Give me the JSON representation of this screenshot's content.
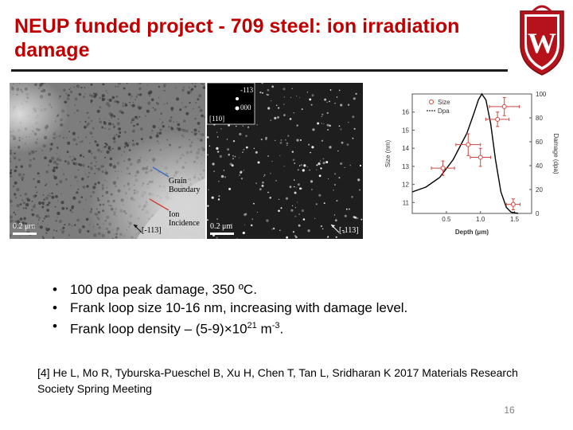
{
  "slide": {
    "title": "NEUP funded project - 709 steel: ion irradiation damage",
    "page_number": "16",
    "colors": {
      "title": "#c00000",
      "crest": "#b5121b",
      "size_series": "#d0453f",
      "dpa_series": "#000000"
    }
  },
  "micrograph_left": {
    "scale_bar": "0.2 μm",
    "zone_axis": "[-113]",
    "label_grain_line1": "Grain",
    "label_grain_line2": "Boundary",
    "label_ion_line1": "Ion",
    "label_ion_line2": "Incidence"
  },
  "micrograph_right": {
    "scale_bar": "0.2 μm",
    "zone_axis": "[-113]",
    "inset_labels": [
      "-113",
      "000",
      "[110]"
    ]
  },
  "chart_data": {
    "type": "scatter",
    "xlabel": "Depth (μm)",
    "ylabel_left": "Size (nm)",
    "ylabel_right": "Damage (dpa)",
    "x_ticks": [
      "0.5",
      "1.0",
      "1.5"
    ],
    "y_left_ticks": [
      "11",
      "12",
      "13",
      "14",
      "15",
      "16"
    ],
    "y_right_ticks": [
      "0",
      "20",
      "40",
      "60",
      "80",
      "100"
    ],
    "xlim": [
      0.0,
      1.75
    ],
    "ylim_left": [
      10.4,
      17.0
    ],
    "ylim_right": [
      0,
      100
    ],
    "legend": [
      "Size",
      "Dpa"
    ],
    "legend_position": "top-left",
    "series": [
      {
        "name": "Size",
        "axis": "left",
        "points": [
          {
            "x": 0.45,
            "y": 12.9,
            "xerr": 0.17,
            "yerr": 0.4
          },
          {
            "x": 0.82,
            "y": 14.2,
            "xerr": 0.18,
            "yerr": 0.6
          },
          {
            "x": 1.0,
            "y": 13.5,
            "xerr": 0.15,
            "yerr": 0.5
          },
          {
            "x": 1.25,
            "y": 15.6,
            "xerr": 0.17,
            "yerr": 0.4
          },
          {
            "x": 1.35,
            "y": 16.3,
            "xerr": 0.22,
            "yerr": 0.5
          },
          {
            "x": 1.48,
            "y": 10.9,
            "xerr": 0.1,
            "yerr": 0.3
          }
        ]
      },
      {
        "name": "Dpa",
        "axis": "right",
        "points": [
          {
            "x": 0.0,
            "y": 18
          },
          {
            "x": 0.2,
            "y": 22
          },
          {
            "x": 0.4,
            "y": 30
          },
          {
            "x": 0.6,
            "y": 45
          },
          {
            "x": 0.8,
            "y": 67
          },
          {
            "x": 0.9,
            "y": 83
          },
          {
            "x": 0.97,
            "y": 95
          },
          {
            "x": 1.02,
            "y": 100
          },
          {
            "x": 1.08,
            "y": 95
          },
          {
            "x": 1.15,
            "y": 75
          },
          {
            "x": 1.22,
            "y": 45
          },
          {
            "x": 1.3,
            "y": 18
          },
          {
            "x": 1.38,
            "y": 5
          },
          {
            "x": 1.45,
            "y": 1
          },
          {
            "x": 1.55,
            "y": 0
          }
        ]
      }
    ]
  },
  "bullets": [
    {
      "text": "100 dpa peak damage, 350 ºC."
    },
    {
      "text": "Frank loop size 10-16 nm, increasing with damage level."
    },
    {
      "pre": "Frank loop density – (5-9)×10",
      "sup1": "21",
      "mid": " m",
      "sup2": "-3",
      "post": "."
    }
  ],
  "reference": "[4] He L, Mo R, Tyburska-Pueschel B, Xu H, Chen T, Tan L, Sridharan K 2017 Materials Research Society Spring Meeting"
}
